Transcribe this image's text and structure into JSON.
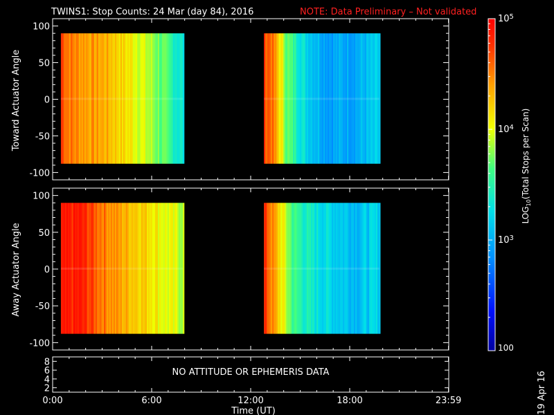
{
  "title": {
    "main": "TWINS1: Stop Counts: 24 Mar (day  84), 2016",
    "note": "NOTE: Data Preliminary – Not validated",
    "note_color": "#ff2020"
  },
  "date_stamp": "19 Apr 16",
  "chart_data": [
    {
      "type": "heatmap",
      "name": "toward",
      "ylabel": "Toward Actuator Angle",
      "ylim": [
        -110,
        110
      ],
      "yticks": [
        100,
        50,
        0,
        -50,
        -100
      ],
      "blocks": [
        {
          "start_hour": 0.5,
          "end_hour": 7.9,
          "angle_min": -88,
          "angle_max": 90,
          "profile": [
            [
              0,
              4.75
            ],
            [
              0.05,
              4.55
            ],
            [
              0.15,
              4.45
            ],
            [
              0.35,
              4.35
            ],
            [
              0.6,
              4.05
            ],
            [
              0.8,
              3.75
            ],
            [
              0.9,
              3.5
            ],
            [
              1,
              3.3
            ]
          ]
        },
        {
          "start_hour": 12.8,
          "end_hour": 19.8,
          "angle_min": -88,
          "angle_max": 90,
          "profile": [
            [
              0,
              4.7
            ],
            [
              0.06,
              4.6
            ],
            [
              0.12,
              4.2
            ],
            [
              0.2,
              3.7
            ],
            [
              0.35,
              3.25
            ],
            [
              0.55,
              2.95
            ],
            [
              0.8,
              3.0
            ],
            [
              1,
              3.15
            ]
          ]
        }
      ]
    },
    {
      "type": "heatmap",
      "name": "away",
      "ylabel": "Away Actuator Angle",
      "ylim": [
        -110,
        110
      ],
      "yticks": [
        100,
        50,
        0,
        -50,
        -100
      ],
      "blocks": [
        {
          "start_hour": 0.5,
          "end_hour": 7.9,
          "angle_min": -88,
          "angle_max": 90,
          "profile": [
            [
              0,
              4.8
            ],
            [
              0.15,
              4.85
            ],
            [
              0.3,
              4.6
            ],
            [
              0.5,
              4.35
            ],
            [
              0.7,
              4.2
            ],
            [
              0.85,
              4.0
            ],
            [
              1,
              3.9
            ]
          ]
        },
        {
          "start_hour": 12.8,
          "end_hour": 19.8,
          "angle_min": -88,
          "angle_max": 90,
          "profile": [
            [
              0,
              4.75
            ],
            [
              0.05,
              4.55
            ],
            [
              0.12,
              4.2
            ],
            [
              0.25,
              3.6
            ],
            [
              0.4,
              3.35
            ],
            [
              0.6,
              3.2
            ],
            [
              0.8,
              3.1
            ],
            [
              1,
              3.2
            ]
          ]
        }
      ]
    },
    {
      "type": "table",
      "name": "attitude",
      "message": "NO ATTITUDE OR EPHEMERIS DATA",
      "yticks": [
        8,
        6,
        4,
        2
      ]
    }
  ],
  "x_axis": {
    "label": "Time (UT)",
    "range_hours": [
      0,
      24
    ],
    "ticks": [
      {
        "hour": 0,
        "label": "0:00"
      },
      {
        "hour": 6,
        "label": "6:00"
      },
      {
        "hour": 12,
        "label": "12:00"
      },
      {
        "hour": 18,
        "label": "18:00"
      },
      {
        "hour": 23.983,
        "label": "23:59"
      }
    ]
  },
  "colorbar": {
    "label": "LOG10(Total Stops per Scan)",
    "label_parts": [
      "LOG",
      "10",
      "(Total Stops per Scan)"
    ],
    "log_min": 2,
    "log_max": 5,
    "tick_labels": [
      {
        "log": 5,
        "base": "10",
        "exp": "5"
      },
      {
        "log": 4,
        "base": "10",
        "exp": "4"
      },
      {
        "log": 3,
        "base": "10",
        "exp": "3"
      }
    ],
    "bottom_label": "100"
  }
}
